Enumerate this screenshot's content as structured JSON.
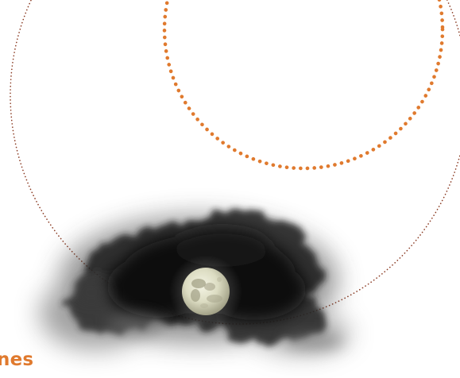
{
  "caption": {
    "text": "nes"
  },
  "colors": {
    "background": "#ffffff",
    "accent_orange": "#e07a2e",
    "orbit_brown": "#8a3a22",
    "cloud_dark": "#0b0b0b",
    "moon_light": "#e9ead6",
    "moon_shadow": "#8f8d72"
  },
  "illustration": {
    "elements": [
      "large-dotted-orbit",
      "orange-dotted-circle",
      "dark-cloud",
      "full-moon"
    ]
  }
}
